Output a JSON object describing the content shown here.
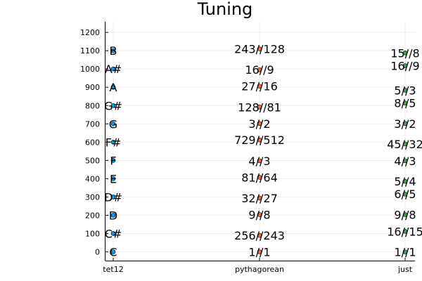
{
  "chart_data": {
    "type": "scatter",
    "title": "Tuning",
    "xlabel": "",
    "ylabel": "",
    "categories": [
      "tet12",
      "pythagorean",
      "just"
    ],
    "ylim": [
      -50,
      1250
    ],
    "yticks": [
      0,
      100,
      200,
      300,
      400,
      500,
      600,
      700,
      800,
      900,
      1000,
      1100,
      1200
    ],
    "grid": true,
    "legend": "none",
    "series": [
      {
        "category": "tet12",
        "color": "#009af9",
        "points": [
          {
            "y": 0,
            "label": "C"
          },
          {
            "y": 100,
            "label": "C#"
          },
          {
            "y": 200,
            "label": "D"
          },
          {
            "y": 300,
            "label": "D#"
          },
          {
            "y": 400,
            "label": "E"
          },
          {
            "y": 500,
            "label": "F"
          },
          {
            "y": 600,
            "label": "F#"
          },
          {
            "y": 700,
            "label": "G"
          },
          {
            "y": 800,
            "label": "G#"
          },
          {
            "y": 900,
            "label": "A"
          },
          {
            "y": 1000,
            "label": "A#"
          },
          {
            "y": 1100,
            "label": "B"
          }
        ]
      },
      {
        "category": "pythagorean",
        "color": "#e26f46",
        "points": [
          {
            "y": 0,
            "label": "1//1"
          },
          {
            "y": 90,
            "label": "256//243"
          },
          {
            "y": 204,
            "label": "9//8"
          },
          {
            "y": 294,
            "label": "32//27"
          },
          {
            "y": 408,
            "label": "81//64"
          },
          {
            "y": 498,
            "label": "4//3"
          },
          {
            "y": 612,
            "label": "729//512"
          },
          {
            "y": 702,
            "label": "3//2"
          },
          {
            "y": 792,
            "label": "128//81"
          },
          {
            "y": 906,
            "label": "27//16"
          },
          {
            "y": 996,
            "label": "16//9"
          },
          {
            "y": 1110,
            "label": "243//128"
          }
        ]
      },
      {
        "category": "just",
        "color": "#3da44d",
        "points": [
          {
            "y": 0,
            "label": "1//1"
          },
          {
            "y": 112,
            "label": "16//15"
          },
          {
            "y": 204,
            "label": "9//8"
          },
          {
            "y": 316,
            "label": "6//5"
          },
          {
            "y": 386,
            "label": "5//4"
          },
          {
            "y": 498,
            "label": "4//3"
          },
          {
            "y": 590,
            "label": "45//32"
          },
          {
            "y": 702,
            "label": "3//2"
          },
          {
            "y": 814,
            "label": "8//5"
          },
          {
            "y": 884,
            "label": "5//3"
          },
          {
            "y": 1018,
            "label": "16//9"
          },
          {
            "y": 1088,
            "label": "15//8"
          }
        ]
      }
    ]
  }
}
